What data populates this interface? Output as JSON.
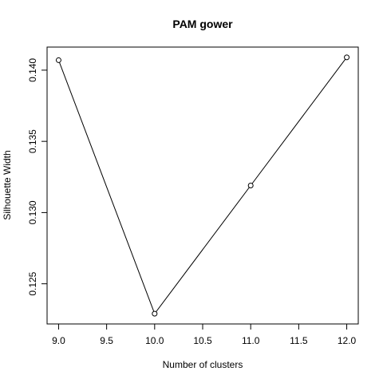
{
  "chart_data": {
    "type": "line",
    "title": "PAM gower",
    "xlabel": "Number of clusters",
    "ylabel": "Silhouette Width",
    "x": [
      9,
      10,
      11,
      12
    ],
    "series": [
      {
        "values": [
          0.1407,
          0.1229,
          0.1319,
          0.1409
        ]
      }
    ],
    "xlim": [
      8.88,
      12.12
    ],
    "ylim": [
      0.12218,
      0.14162
    ],
    "xticks": [
      "9.0",
      "9.5",
      "10.0",
      "10.5",
      "11.0",
      "11.5",
      "12.0"
    ],
    "yticks": [
      "0.125",
      "0.130",
      "0.135",
      "0.140"
    ],
    "grid": false,
    "legend": "none",
    "colors": {
      "line": "#000000",
      "marker": "#000000",
      "frame": "#000000"
    }
  }
}
